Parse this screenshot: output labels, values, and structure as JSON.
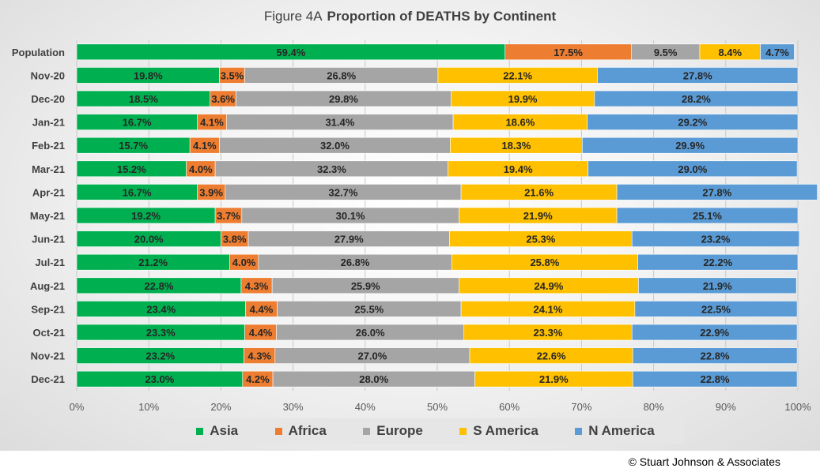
{
  "title": {
    "figure_label": "Figure  4A",
    "main": "Proportion of DEATHS by Continent"
  },
  "copyright": "© Stuart Johnson & Associates",
  "chart_data": {
    "type": "bar",
    "orientation": "horizontal-stacked-100",
    "categories": [
      "Population",
      "Nov-20",
      "Dec-20",
      "Jan-21",
      "Feb-21",
      "Mar-21",
      "Apr-21",
      "May-21",
      "Jun-21",
      "Jul-21",
      "Aug-21",
      "Sep-21",
      "Oct-21",
      "Nov-21",
      "Dec-21"
    ],
    "series": [
      {
        "name": "Asia",
        "color": "#00b050",
        "values": [
          59.4,
          19.8,
          18.5,
          16.7,
          15.7,
          15.2,
          16.7,
          19.2,
          20.0,
          21.2,
          22.8,
          23.4,
          23.3,
          23.2,
          23.0
        ]
      },
      {
        "name": "Africa",
        "color": "#ed7d31",
        "values": [
          17.5,
          3.5,
          3.6,
          4.1,
          4.1,
          4.0,
          3.9,
          3.7,
          3.8,
          4.0,
          4.3,
          4.4,
          4.4,
          4.3,
          4.2
        ]
      },
      {
        "name": "Europe",
        "color": "#a5a5a5",
        "values": [
          9.5,
          26.8,
          29.8,
          31.4,
          32.0,
          32.3,
          32.7,
          30.1,
          27.9,
          26.8,
          25.9,
          25.5,
          26.0,
          27.0,
          28.0
        ]
      },
      {
        "name": "S America",
        "color": "#ffc000",
        "values": [
          8.4,
          22.1,
          19.9,
          18.6,
          18.3,
          19.4,
          21.6,
          21.9,
          25.3,
          25.8,
          24.9,
          24.1,
          23.3,
          22.6,
          21.9
        ]
      },
      {
        "name": "N America",
        "color": "#5b9bd5",
        "values": [
          4.7,
          27.8,
          28.2,
          29.2,
          29.9,
          29.0,
          27.8,
          25.1,
          23.2,
          22.2,
          21.9,
          22.5,
          22.9,
          22.8,
          22.8
        ]
      }
    ],
    "x_ticks": [
      "0%",
      "10%",
      "20%",
      "30%",
      "40%",
      "50%",
      "60%",
      "70%",
      "80%",
      "90%",
      "100%"
    ],
    "xlim": [
      0,
      100
    ],
    "grid": true,
    "legend_position": "bottom"
  }
}
